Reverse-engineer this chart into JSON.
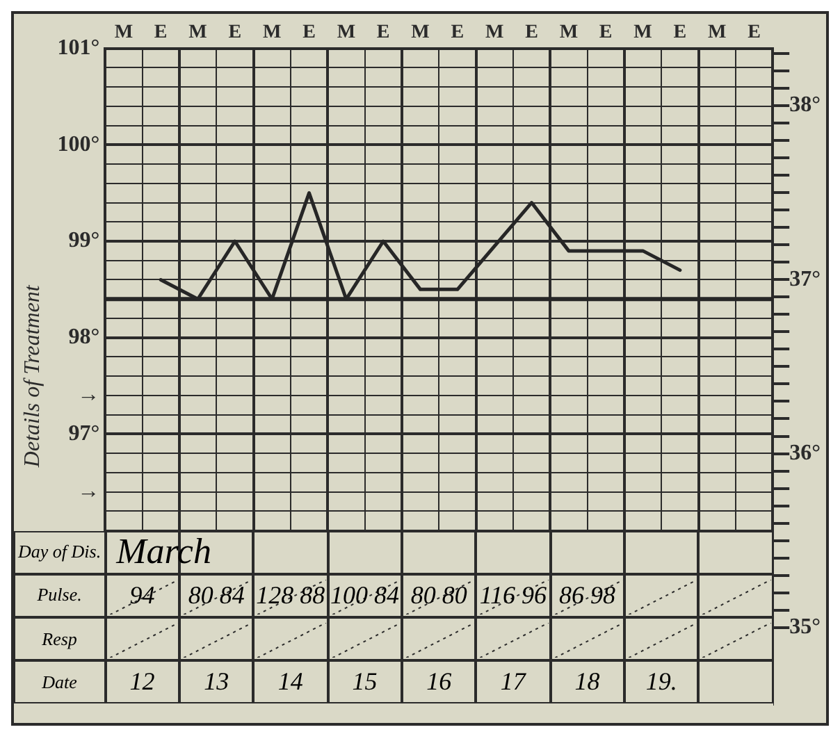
{
  "chart_data": {
    "type": "line",
    "ylabel": "Details of Treatment",
    "categories": [
      "M",
      "E",
      "M",
      "E",
      "M",
      "E",
      "M",
      "E",
      "M",
      "E",
      "M",
      "E",
      "M",
      "E",
      "M",
      "E",
      "M",
      "E"
    ],
    "values": [
      null,
      98.6,
      98.4,
      99.0,
      98.4,
      99.5,
      98.4,
      99.0,
      98.5,
      98.5,
      null,
      99.4,
      98.9,
      98.9,
      98.9,
      98.7,
      null,
      null
    ],
    "color": "#262626",
    "marker": "none",
    "line_style": "solid",
    "grid": true,
    "legend": false,
    "ylim": [
      94.2,
      101
    ],
    "yticks": [
      {
        "value": 96,
        "label": null
      },
      {
        "value": 96.2,
        "label": null
      },
      {
        "value": 96.4,
        "label": "→"
      },
      {
        "value": 96.6,
        "label": null
      },
      {
        "value": 96.8,
        "label": null
      },
      {
        "value": 97,
        "label": "97°"
      },
      {
        "value": 97.2,
        "label": null
      },
      {
        "value": 97.4,
        "label": "→"
      },
      {
        "value": 97.6,
        "label": null
      },
      {
        "value": 97.8,
        "label": null
      },
      {
        "value": 98,
        "label": "98°"
      },
      {
        "value": 98.2,
        "label": null
      },
      {
        "value": 98.4,
        "label": null
      },
      {
        "value": 98.6,
        "label": null
      },
      {
        "value": 98.8,
        "label": null
      },
      {
        "value": 99,
        "label": "99°"
      },
      {
        "value": 99.2,
        "label": null
      },
      {
        "value": 99.4,
        "label": null
      },
      {
        "value": 99.6,
        "label": null
      },
      {
        "value": 99.8,
        "label": null
      },
      {
        "value": 100,
        "label": "100°"
      },
      {
        "value": 100.2,
        "label": null
      },
      {
        "value": 100.4,
        "label": null
      },
      {
        "value": 100.6,
        "label": null
      },
      {
        "value": 100.8,
        "label": null
      },
      {
        "value": 101,
        "label": "101°"
      }
    ],
    "y2lim": [
      34.56,
      38.33
    ],
    "y2ticks": [
      {
        "value": 35,
        "label": "35°"
      },
      {
        "value": 35.1,
        "label": null
      },
      {
        "value": 35.2,
        "label": null
      },
      {
        "value": 35.3,
        "label": null
      },
      {
        "value": 35.4,
        "label": null
      },
      {
        "value": 35.5,
        "label": null
      },
      {
        "value": 35.6,
        "label": null
      },
      {
        "value": 35.7,
        "label": null
      },
      {
        "value": 35.8,
        "label": null
      },
      {
        "value": 35.9,
        "label": null
      },
      {
        "value": 36,
        "label": "36°"
      },
      {
        "value": 36.1,
        "label": null
      },
      {
        "value": 36.2,
        "label": null
      },
      {
        "value": 36.3,
        "label": null
      },
      {
        "value": 36.4,
        "label": null
      },
      {
        "value": 36.5,
        "label": null
      },
      {
        "value": 36.6,
        "label": null
      },
      {
        "value": 36.7,
        "label": null
      },
      {
        "value": 36.8,
        "label": null
      },
      {
        "value": 36.9,
        "label": null
      },
      {
        "value": 37,
        "label": "37°"
      },
      {
        "value": 37.1,
        "label": null
      },
      {
        "value": 37.2,
        "label": null
      },
      {
        "value": 37.3,
        "label": null
      },
      {
        "value": 37.4,
        "label": null
      },
      {
        "value": 37.5,
        "label": null
      },
      {
        "value": 37.6,
        "label": null
      },
      {
        "value": 37.7,
        "label": null
      },
      {
        "value": 37.8,
        "label": null
      },
      {
        "value": 37.9,
        "label": null
      },
      {
        "value": 38,
        "label": "38°"
      },
      {
        "value": 38.1,
        "label": null
      },
      {
        "value": 38.2,
        "label": null
      },
      {
        "value": 38.3,
        "label": null
      }
    ],
    "ref_lines": [
      {
        "axis": "y",
        "value": 98.4,
        "color": "#262626"
      }
    ],
    "annotations": [
      "Day of Dis.",
      "March",
      "Pulse.",
      "94",
      "80 84",
      "128 88",
      "100 84",
      "80 80",
      "116 96",
      "86 98",
      "Resp",
      "Date",
      "12",
      "13",
      "14",
      "15",
      "16",
      "17",
      "18",
      "19."
    ]
  }
}
